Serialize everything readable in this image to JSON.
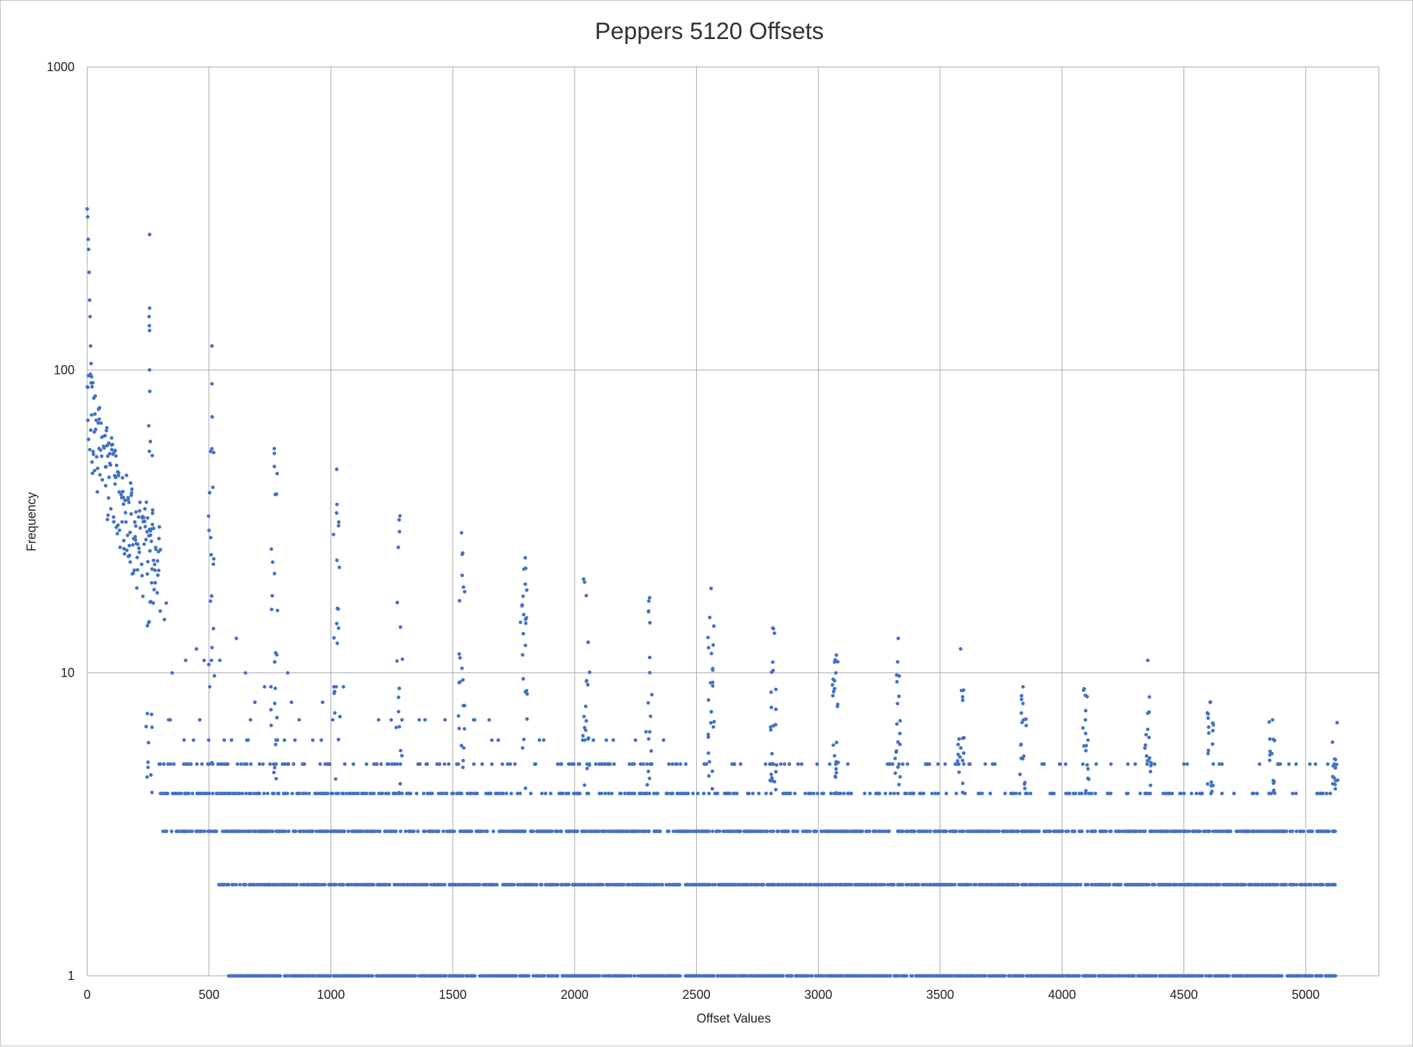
{
  "chart_data": {
    "type": "scatter",
    "title": "Peppers 5120 Offsets",
    "xlabel": "Offset Values",
    "ylabel": "Frequency",
    "xlim": [
      0,
      5300
    ],
    "ylim": [
      1,
      1000
    ],
    "y_scale": "log",
    "grid": true,
    "legend": "none",
    "x_ticks": [
      "0",
      "500",
      "1000",
      "1500",
      "2000",
      "2500",
      "3000",
      "3500",
      "4000",
      "4500",
      "5000"
    ],
    "y_ticks": [
      "1",
      "10",
      "100",
      "1000"
    ],
    "marker_color": "#4472c4",
    "peaks": [
      {
        "x": 0,
        "y": 340
      },
      {
        "x": 2,
        "y": 320
      },
      {
        "x": 4,
        "y": 270
      },
      {
        "x": 6,
        "y": 250
      },
      {
        "x": 8,
        "y": 210
      },
      {
        "x": 10,
        "y": 170
      },
      {
        "x": 12,
        "y": 150
      },
      {
        "x": 14,
        "y": 120
      },
      {
        "x": 16,
        "y": 105
      },
      {
        "x": 18,
        "y": 95
      },
      {
        "x": 20,
        "y": 88
      },
      {
        "x": 256,
        "y": 280
      },
      {
        "x": 256,
        "y": 160
      },
      {
        "x": 254,
        "y": 150
      },
      {
        "x": 255,
        "y": 140
      },
      {
        "x": 256,
        "y": 135
      },
      {
        "x": 256,
        "y": 100
      },
      {
        "x": 257,
        "y": 85
      },
      {
        "x": 512,
        "y": 120
      },
      {
        "x": 512,
        "y": 90
      },
      {
        "x": 513,
        "y": 70
      },
      {
        "x": 768,
        "y": 55
      },
      {
        "x": 768,
        "y": 53
      },
      {
        "x": 768,
        "y": 48
      },
      {
        "x": 1024,
        "y": 47
      },
      {
        "x": 1025,
        "y": 36
      },
      {
        "x": 1280,
        "y": 32
      },
      {
        "x": 1536,
        "y": 29
      },
      {
        "x": 1792,
        "y": 22
      },
      {
        "x": 2048,
        "y": 18
      },
      {
        "x": 2304,
        "y": 16
      },
      {
        "x": 2560,
        "y": 19
      },
      {
        "x": 2816,
        "y": 14
      },
      {
        "x": 3072,
        "y": 10
      },
      {
        "x": 3328,
        "y": 13
      },
      {
        "x": 3584,
        "y": 12
      },
      {
        "x": 3840,
        "y": 9
      },
      {
        "x": 4096,
        "y": 7
      },
      {
        "x": 4352,
        "y": 11
      },
      {
        "x": 4608,
        "y": 8
      },
      {
        "x": 4864,
        "y": 7
      },
      {
        "x": 5118,
        "y": 5
      }
    ],
    "generation": {
      "seed": 5120,
      "x_max": 5120,
      "period": 256,
      "floor_levels": [
        1,
        2,
        3,
        4,
        5
      ],
      "head_range": [
        0,
        300
      ],
      "head_band": [
        13,
        60
      ]
    }
  }
}
